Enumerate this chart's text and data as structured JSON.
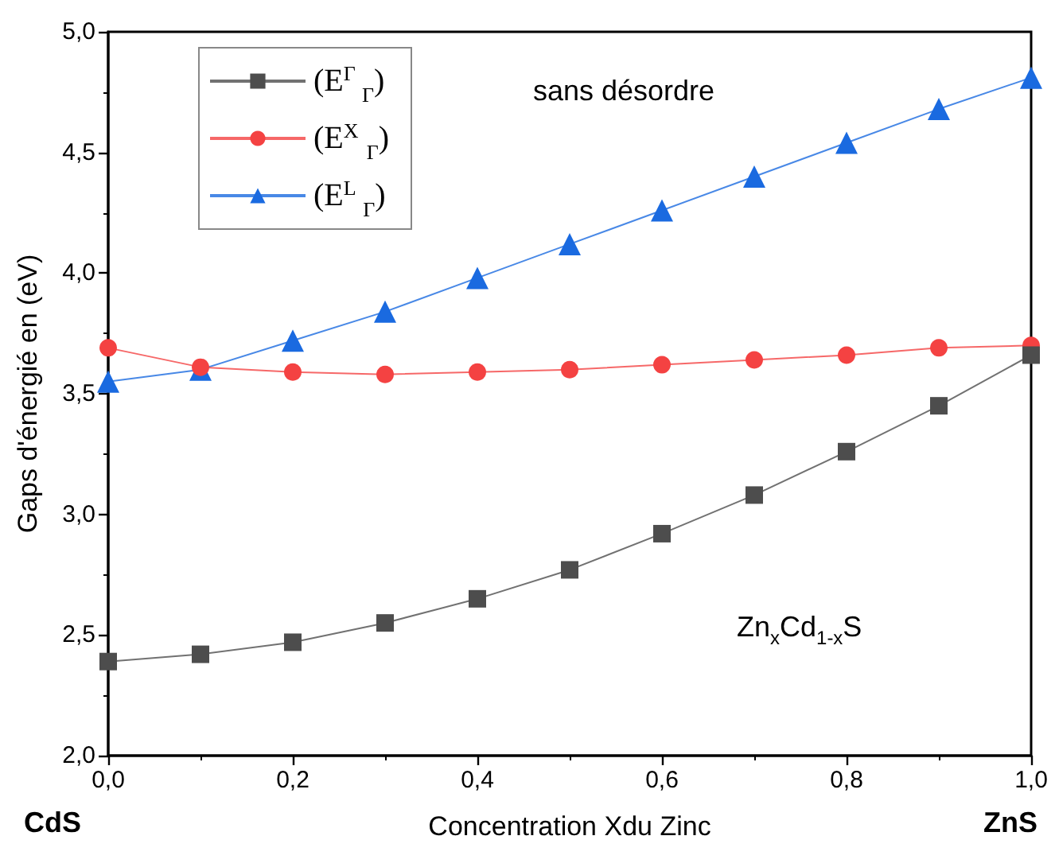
{
  "chart_data": {
    "type": "line",
    "xlabel": "Concentration Xdu Zinc",
    "ylabel": "Gaps d'énergié en (eV)",
    "x": [
      0,
      0.1,
      0.2,
      0.3,
      0.4,
      0.5,
      0.6,
      0.7,
      0.8,
      0.9,
      1.0
    ],
    "series": [
      {
        "name": "(E$^{Γ}$$_{Γ}$)",
        "color": "#4d4d4d",
        "marker": "square",
        "values": [
          2.39,
          2.42,
          2.47,
          2.55,
          2.65,
          2.77,
          2.92,
          3.08,
          3.26,
          3.45,
          3.66
        ]
      },
      {
        "name": "(E$^{X}$$_{Γ}$)",
        "color": "#f44242",
        "marker": "circle",
        "values": [
          3.69,
          3.61,
          3.59,
          3.58,
          3.59,
          3.6,
          3.62,
          3.64,
          3.66,
          3.69,
          3.7
        ]
      },
      {
        "name": "(E$^{L}$$_{Γ}$)",
        "color": "#1a6ae0",
        "marker": "triangle",
        "values": [
          3.55,
          3.6,
          3.72,
          3.84,
          3.98,
          4.12,
          4.26,
          4.4,
          4.54,
          4.68,
          4.81
        ]
      }
    ],
    "xlim": [
      0,
      1
    ],
    "xticks": [
      {
        "value": 0,
        "label": "0,0"
      },
      {
        "value": 0.2,
        "label": "0,2"
      },
      {
        "value": 0.4,
        "label": "0,4"
      },
      {
        "value": 0.6,
        "label": "0,6"
      },
      {
        "value": 0.8,
        "label": "0,8"
      },
      {
        "value": 1,
        "label": "1,0"
      }
    ],
    "ylim": [
      2,
      5
    ],
    "yticks": [
      {
        "value": 2,
        "label": "2,0"
      },
      {
        "value": 2.5,
        "label": "2,5"
      },
      {
        "value": 3,
        "label": "3,0"
      },
      {
        "value": 3.5,
        "label": "3,5"
      },
      {
        "value": 4,
        "label": "4,0"
      },
      {
        "value": 4.5,
        "label": "4,5"
      },
      {
        "value": 5,
        "label": "5,0"
      }
    ],
    "annotations": [
      "sans désordre",
      "Zn$_{x}$Cd$_{1-x}$S",
      "CdS",
      "ZnS"
    ],
    "legend": "top left",
    "grid": false,
    "line_style": "solid"
  }
}
